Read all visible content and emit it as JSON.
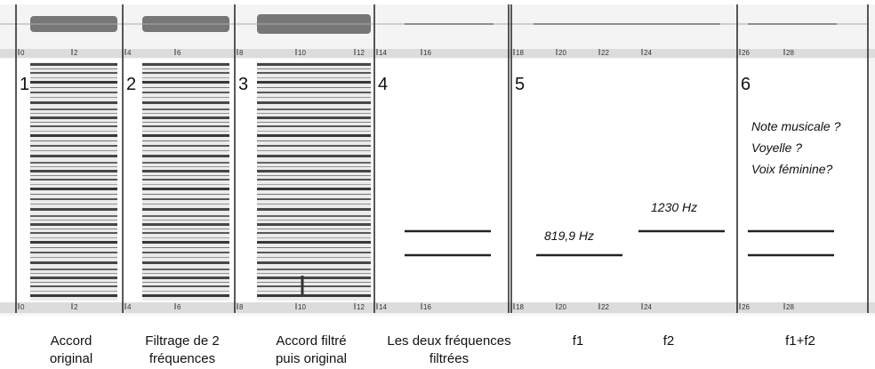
{
  "panels": [
    {
      "number": "1",
      "ruler": [
        0,
        2
      ],
      "caption": [
        "Accord",
        "original"
      ]
    },
    {
      "number": "2",
      "ruler": [
        4,
        6
      ],
      "caption": [
        "Filtrage de 2",
        "fréquences"
      ]
    },
    {
      "number": "3",
      "ruler": [
        8,
        10,
        12
      ],
      "caption": [
        "Accord filtré",
        "puis original"
      ]
    },
    {
      "number": "4",
      "ruler": [
        14,
        16
      ],
      "caption": [
        "Les deux fréquences",
        "filtrées"
      ]
    },
    {
      "number": "5",
      "ruler": [
        18,
        20,
        22,
        24
      ],
      "caption": [
        "f1",
        "f2"
      ]
    },
    {
      "number": "6",
      "ruler": [
        26,
        28
      ],
      "caption": [
        "f1+f2"
      ]
    }
  ],
  "annotations": {
    "f1": "819,9 Hz",
    "f2": "1230 Hz",
    "questions": [
      "Note musicale ?",
      "Voyelle ?",
      "Voix féminine?"
    ]
  }
}
